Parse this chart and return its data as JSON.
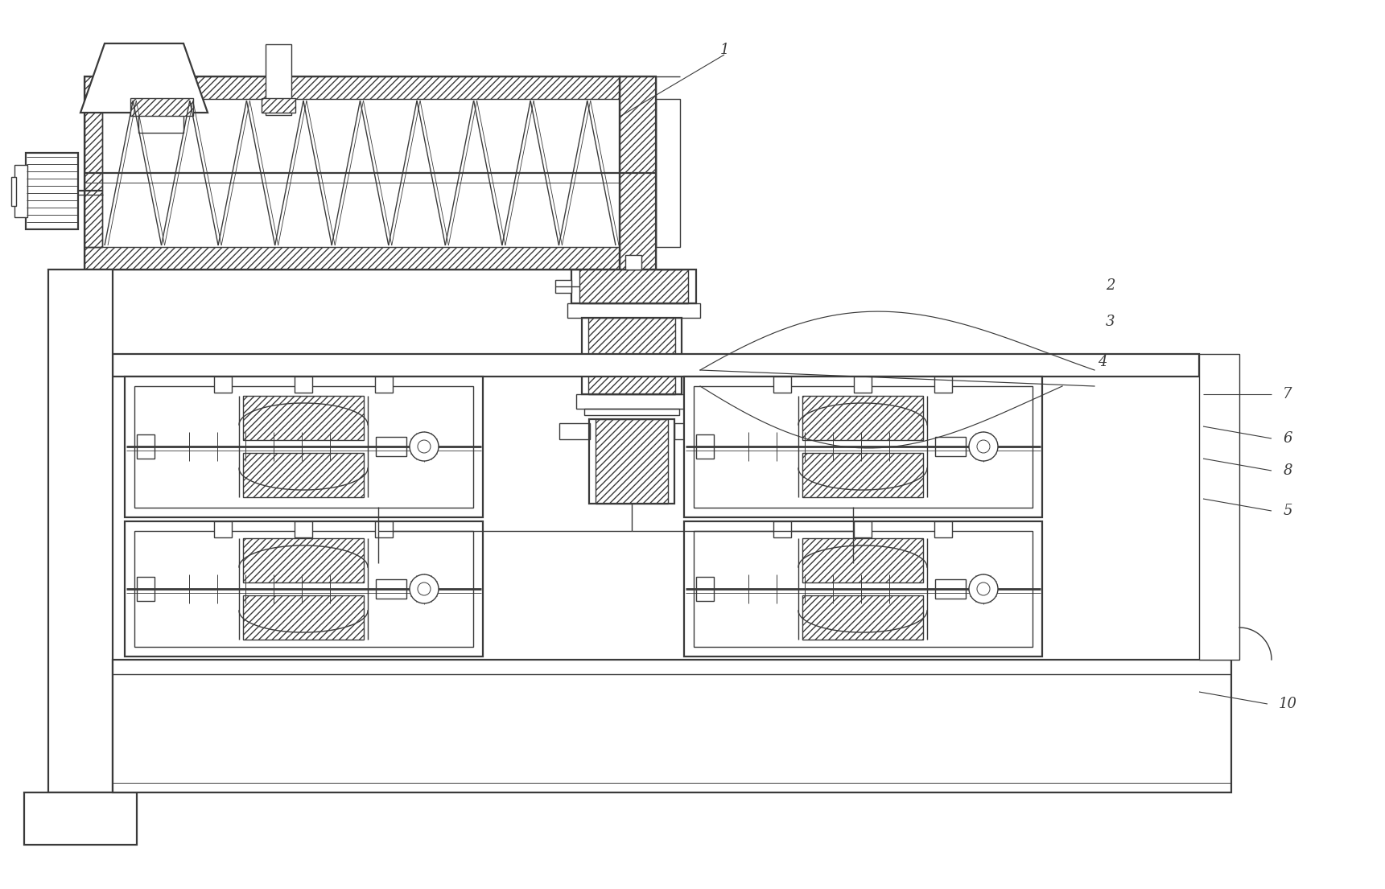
{
  "background_color": "#ffffff",
  "line_color": "#3a3a3a",
  "figsize": [
    17.21,
    11.05
  ],
  "dpi": 100,
  "label_fontsize": 12,
  "lw": 1.0,
  "lw2": 1.6,
  "lw3": 2.0
}
